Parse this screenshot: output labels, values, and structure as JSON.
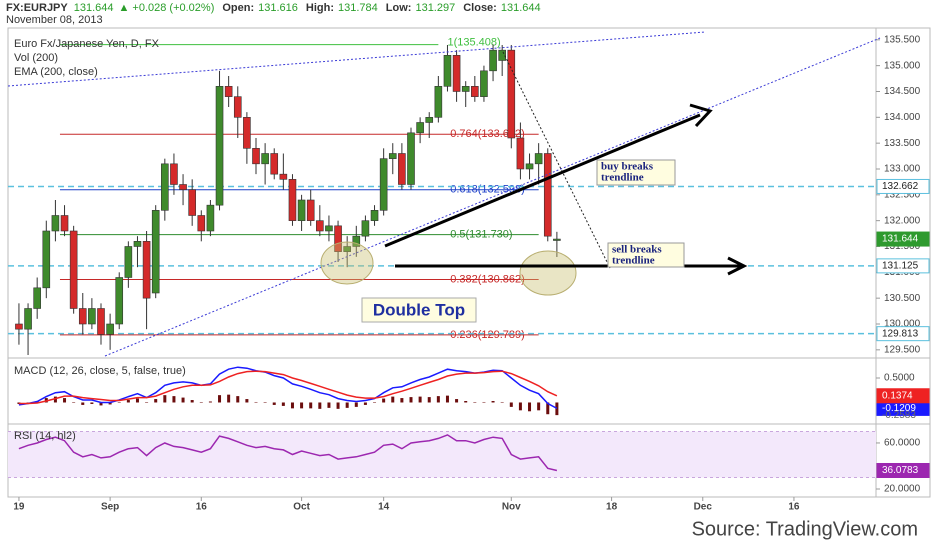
{
  "header": {
    "symbol": "FX:EURJPY",
    "change": "+0.028 (+0.02%)",
    "open": "Open:",
    "high": "High:",
    "low": "Low:",
    "close": "Close:",
    "date": "November 08, 2013"
  },
  "source": "Source: TradingView.com",
  "chart_data": [
    {
      "type": "candlestick",
      "legend": [
        "Euro Fx/Japanese Yen, D, FX",
        "Vol (200)",
        "EMA (200, close)"
      ],
      "x": [
        0,
        1,
        2,
        3,
        4,
        5,
        6,
        7,
        8,
        9,
        10,
        11,
        12,
        13,
        14,
        15,
        16,
        17,
        18,
        19,
        20,
        21,
        22,
        23,
        24,
        25,
        26,
        27,
        28,
        29,
        30,
        31,
        32,
        33,
        34,
        35,
        36,
        37,
        38,
        39,
        40,
        41,
        42,
        43,
        44,
        45,
        46,
        47,
        48,
        49,
        50,
        51,
        52,
        53,
        54,
        55,
        56,
        57,
        58,
        59
      ],
      "open": [
        130.0,
        129.9,
        130.3,
        130.7,
        131.8,
        132.1,
        131.8,
        130.3,
        130.0,
        130.3,
        129.8,
        130.0,
        130.9,
        131.5,
        131.6,
        130.6,
        132.2,
        133.1,
        132.7,
        132.6,
        132.1,
        131.8,
        132.3,
        134.6,
        134.4,
        134.0,
        133.4,
        133.1,
        133.3,
        132.9,
        132.8,
        132.0,
        132.4,
        132.0,
        131.8,
        131.9,
        131.4,
        131.5,
        131.7,
        132.0,
        132.2,
        133.2,
        133.3,
        132.7,
        133.7,
        133.9,
        134.0,
        134.6,
        135.2,
        134.5,
        134.6,
        134.4,
        134.9,
        135.1,
        135.3,
        133.6,
        133.0,
        133.1,
        133.3,
        131.616
      ],
      "high": [
        130.4,
        130.4,
        130.9,
        132.0,
        132.4,
        132.3,
        131.9,
        130.6,
        130.5,
        130.4,
        130.2,
        131.0,
        131.6,
        131.7,
        131.8,
        132.3,
        133.2,
        133.3,
        132.9,
        132.8,
        132.2,
        132.4,
        134.9,
        134.8,
        134.6,
        134.1,
        133.6,
        133.5,
        133.4,
        133.3,
        132.9,
        132.5,
        132.6,
        132.3,
        132.1,
        132.0,
        131.7,
        131.9,
        132.1,
        132.3,
        133.4,
        133.5,
        133.5,
        133.8,
        134.0,
        134.1,
        134.8,
        135.4,
        135.3,
        134.7,
        134.8,
        135.0,
        135.41,
        135.4,
        135.4,
        133.9,
        133.3,
        133.5,
        133.4,
        131.784
      ],
      "low": [
        129.6,
        129.4,
        130.1,
        130.5,
        131.6,
        131.7,
        130.2,
        129.8,
        129.9,
        129.6,
        129.5,
        129.9,
        130.7,
        131.1,
        129.9,
        130.5,
        132.0,
        132.5,
        132.3,
        131.9,
        131.6,
        131.7,
        132.2,
        134.2,
        133.6,
        133.1,
        132.9,
        132.7,
        132.8,
        132.6,
        131.9,
        131.8,
        131.9,
        131.7,
        131.6,
        131.2,
        131.1,
        131.3,
        131.6,
        131.9,
        132.1,
        132.9,
        132.6,
        132.6,
        133.5,
        133.6,
        133.9,
        134.5,
        134.3,
        134.2,
        134.3,
        134.3,
        134.7,
        134.8,
        133.4,
        132.8,
        132.8,
        132.7,
        131.6,
        131.297
      ],
      "close": [
        129.9,
        130.3,
        130.7,
        131.8,
        132.1,
        131.8,
        130.3,
        130.0,
        130.3,
        129.8,
        130.0,
        130.9,
        131.5,
        131.6,
        130.5,
        132.2,
        133.1,
        132.7,
        132.6,
        132.1,
        131.8,
        132.3,
        134.6,
        134.4,
        134.0,
        133.4,
        133.1,
        133.3,
        132.9,
        132.8,
        132.0,
        132.4,
        132.0,
        131.8,
        131.9,
        131.4,
        131.5,
        131.7,
        132.0,
        132.2,
        133.2,
        133.3,
        132.7,
        133.7,
        133.9,
        134.0,
        134.6,
        135.2,
        134.5,
        134.6,
        134.4,
        134.9,
        135.3,
        135.3,
        133.6,
        133.0,
        133.1,
        133.3,
        131.7,
        131.644
      ],
      "up_color": "#3f8a2c",
      "down_color": "#d42a2a",
      "xlim": [
        -1.2,
        94
      ],
      "ylim": [
        129.4,
        135.69
      ],
      "xticks": [
        {
          "value": 0,
          "label": "19"
        },
        {
          "value": 10,
          "label": "Sep"
        },
        {
          "value": 20,
          "label": "16"
        },
        {
          "value": 31,
          "label": "Oct"
        },
        {
          "value": 40,
          "label": "14"
        },
        {
          "value": 54,
          "label": "Nov"
        },
        {
          "value": 65,
          "label": "18"
        },
        {
          "value": 75,
          "label": "Dec"
        },
        {
          "value": 85,
          "label": "16"
        }
      ],
      "yticks": [
        {
          "value": 129.5,
          "label": "129.500"
        },
        {
          "value": 130,
          "label": "130.000"
        },
        {
          "value": 130.5,
          "label": "130.500"
        },
        {
          "value": 131,
          "label": "131.000"
        },
        {
          "value": 131.5,
          "label": "131.500"
        },
        {
          "value": 132,
          "label": "132.000"
        },
        {
          "value": 132.5,
          "label": "132.500"
        },
        {
          "value": 133,
          "label": "133.000"
        },
        {
          "value": 133.5,
          "label": "133.500"
        },
        {
          "value": 134,
          "label": "134.000"
        },
        {
          "value": 134.5,
          "label": "134.500"
        },
        {
          "value": 135,
          "label": "135.000"
        },
        {
          "value": 135.5,
          "label": "135.500"
        }
      ],
      "fib": [
        {
          "value": 135.408,
          "label": "1(135.408)",
          "color": "#3fbf3f"
        },
        {
          "value": 133.672,
          "label": "0.764(133.672)",
          "color": "#c62828"
        },
        {
          "value": 132.598,
          "label": "0.618(132.598)",
          "color": "#1e40c8"
        },
        {
          "value": 131.73,
          "label": "0.5(131.730)",
          "color": "#2e8b2e"
        },
        {
          "value": 130.862,
          "label": "0.382(130.862)",
          "color": "#c62828"
        },
        {
          "value": 129.789,
          "label": "0.236(129.789)",
          "color": "#c62828"
        }
      ],
      "levels": [
        132.662,
        131.125,
        129.813
      ],
      "level_color": "#5bc0de",
      "annotations": {
        "buy": [
          "buy breaks",
          "trendline"
        ],
        "sell": [
          "sell breaks",
          "trendline"
        ],
        "double_top": "Double Top"
      }
    },
    {
      "type": "line",
      "title": "MACD (12, 26, close, 5, false, true)",
      "ylim": [
        -0.317,
        0.827
      ],
      "yticks": [
        {
          "value": 0.5,
          "label": "0.5000"
        }
      ],
      "series": [
        {
          "color": "#1a1aff",
          "values": [
            -0.05,
            -0.02,
            0.02,
            0.12,
            0.2,
            0.22,
            0.12,
            0.05,
            0.05,
            0.0,
            0.0,
            0.05,
            0.12,
            0.18,
            0.1,
            0.2,
            0.35,
            0.4,
            0.42,
            0.4,
            0.35,
            0.38,
            0.58,
            0.68,
            0.72,
            0.7,
            0.65,
            0.62,
            0.55,
            0.5,
            0.38,
            0.33,
            0.27,
            0.2,
            0.16,
            0.08,
            0.04,
            0.02,
            0.04,
            0.08,
            0.2,
            0.3,
            0.32,
            0.4,
            0.47,
            0.52,
            0.6,
            0.68,
            0.65,
            0.63,
            0.6,
            0.62,
            0.66,
            0.65,
            0.5,
            0.35,
            0.25,
            0.18,
            -0.02,
            -0.1209
          ]
        },
        {
          "color": "#ee2222",
          "values": [
            -0.02,
            -0.02,
            -0.01,
            0.03,
            0.08,
            0.13,
            0.13,
            0.1,
            0.08,
            0.06,
            0.04,
            0.04,
            0.07,
            0.1,
            0.1,
            0.13,
            0.2,
            0.27,
            0.32,
            0.35,
            0.35,
            0.36,
            0.43,
            0.52,
            0.59,
            0.63,
            0.64,
            0.63,
            0.6,
            0.57,
            0.5,
            0.45,
            0.39,
            0.33,
            0.27,
            0.21,
            0.15,
            0.11,
            0.09,
            0.09,
            0.12,
            0.18,
            0.23,
            0.29,
            0.35,
            0.41,
            0.47,
            0.54,
            0.58,
            0.6,
            0.6,
            0.61,
            0.63,
            0.64,
            0.59,
            0.51,
            0.43,
            0.34,
            0.22,
            0.1374
          ]
        }
      ],
      "histogram": {
        "color": "#6b0d0d",
        "values": [
          -0.03,
          0,
          0.03,
          0.09,
          0.12,
          0.09,
          -0.01,
          -0.05,
          -0.03,
          -0.06,
          -0.04,
          0.01,
          0.05,
          0.08,
          0,
          0.07,
          0.15,
          0.13,
          0.1,
          0.05,
          0,
          0.02,
          0.15,
          0.16,
          0.13,
          0.07,
          0.01,
          -0.01,
          -0.05,
          -0.07,
          -0.12,
          -0.12,
          -0.12,
          -0.13,
          -0.11,
          -0.13,
          -0.11,
          -0.09,
          -0.05,
          -0.01,
          0.08,
          0.12,
          0.09,
          0.11,
          0.12,
          0.11,
          0.13,
          0.14,
          0.07,
          0.03,
          0,
          0.01,
          0.03,
          0.01,
          -0.09,
          -0.16,
          -0.18,
          -0.16,
          -0.24,
          -0.2583
        ]
      }
    },
    {
      "type": "line",
      "title": "RSI (14, hl2)",
      "ylim": [
        17.4,
        73.0
      ],
      "yticks": [
        {
          "value": 60,
          "label": "60.0000"
        },
        {
          "value": 20,
          "label": "20.0000"
        }
      ],
      "band": [
        30,
        70
      ],
      "series": [
        {
          "color": "#9c27b0",
          "values": [
            55,
            58,
            60,
            63,
            65,
            62,
            52,
            48,
            50,
            47,
            48,
            52,
            55,
            56,
            49,
            56,
            60,
            57,
            56,
            54,
            52,
            55,
            66,
            64,
            61,
            58,
            56,
            57,
            55,
            54,
            50,
            53,
            51,
            49,
            50,
            46,
            47,
            48,
            50,
            52,
            58,
            59,
            55,
            60,
            61,
            62,
            64,
            67,
            62,
            62,
            60,
            63,
            65,
            64,
            50,
            46,
            47,
            48,
            38,
            36.0783
          ]
        }
      ]
    }
  ]
}
